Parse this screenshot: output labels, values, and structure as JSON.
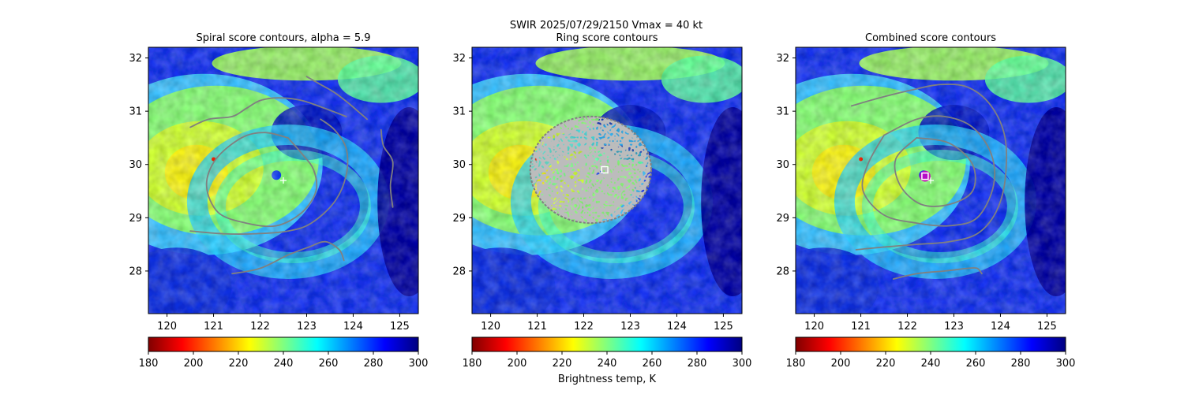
{
  "figure": {
    "suptitle_line1": "SWIR  2025/07/29/2150    Vmax = 40 kt",
    "colorbar_label": "Brightness temp, K"
  },
  "colormap": {
    "name": "jet",
    "reversed": true,
    "range": [
      180,
      300
    ],
    "ticks": [
      "180",
      "200",
      "220",
      "240",
      "260",
      "280",
      "300"
    ]
  },
  "axes_common": {
    "xlim": [
      119.6,
      125.4
    ],
    "ylim": [
      27.2,
      32.2
    ],
    "x_ticks": [
      "120",
      "121",
      "122",
      "123",
      "124",
      "125"
    ],
    "y_ticks": [
      "28",
      "29",
      "30",
      "31",
      "32"
    ]
  },
  "chart_data": [
    {
      "type": "heatmap",
      "title": "Spiral score contours, alpha =  5.9",
      "field": "brightness temperature (K)",
      "value_range": [
        180,
        300
      ],
      "contour_color": "#808080",
      "contours": [
        [
          [
            120.5,
            30.7
          ],
          [
            120.9,
            30.85
          ],
          [
            121.4,
            30.9
          ],
          [
            121.7,
            31.05
          ],
          [
            122.0,
            31.2
          ],
          [
            122.4,
            31.25
          ],
          [
            122.9,
            31.2
          ],
          [
            123.4,
            31.05
          ],
          [
            123.85,
            30.9
          ]
        ],
        [
          [
            123.0,
            31.65
          ],
          [
            123.3,
            31.5
          ],
          [
            123.6,
            31.35
          ],
          [
            123.9,
            31.15
          ],
          [
            124.1,
            31.0
          ],
          [
            124.3,
            30.85
          ]
        ],
        [
          [
            122.6,
            30.5
          ],
          [
            122.1,
            30.6
          ],
          [
            121.6,
            30.5
          ],
          [
            121.05,
            30.1
          ],
          [
            120.85,
            29.6
          ],
          [
            121.1,
            29.1
          ],
          [
            121.7,
            28.9
          ],
          [
            122.35,
            28.85
          ],
          [
            122.9,
            29.1
          ],
          [
            123.2,
            29.5
          ],
          [
            123.15,
            29.9
          ],
          [
            122.9,
            30.2
          ],
          [
            122.6,
            30.5
          ]
        ],
        [
          [
            120.5,
            28.75
          ],
          [
            121.2,
            28.7
          ],
          [
            121.9,
            28.7
          ],
          [
            122.6,
            28.75
          ],
          [
            123.1,
            28.9
          ],
          [
            123.6,
            29.3
          ],
          [
            123.85,
            29.8
          ],
          [
            123.85,
            30.3
          ],
          [
            123.6,
            30.65
          ],
          [
            123.3,
            30.85
          ]
        ],
        [
          [
            121.4,
            27.95
          ],
          [
            122.0,
            28.05
          ],
          [
            122.6,
            28.3
          ],
          [
            123.05,
            28.45
          ],
          [
            123.4,
            28.55
          ],
          [
            123.7,
            28.4
          ],
          [
            123.8,
            28.2
          ]
        ],
        [
          [
            124.6,
            30.65
          ],
          [
            124.65,
            30.35
          ],
          [
            124.85,
            30.05
          ],
          [
            124.8,
            29.6
          ],
          [
            124.85,
            29.2
          ]
        ]
      ],
      "markers": [
        {
          "type": "plus",
          "label": "center",
          "lon": 122.5,
          "lat": 29.7,
          "color": "#ffffff"
        }
      ]
    },
    {
      "type": "heatmap",
      "title": "Ring score contours",
      "field": "brightness temperature (K)",
      "value_range": [
        180,
        300
      ],
      "contour_color": "#808080",
      "ring_region": {
        "lon_center": 122.15,
        "lat_center": 29.9,
        "lon_radius": 1.3,
        "lat_radius": 1.0
      },
      "markers": [
        {
          "type": "square",
          "label": "ring center",
          "lon": 122.45,
          "lat": 29.9,
          "color": "#ffffff"
        }
      ]
    },
    {
      "type": "heatmap",
      "title": "Combined score contours",
      "field": "brightness temperature (K)",
      "value_range": [
        180,
        300
      ],
      "contour_color": "#808080",
      "contours": [
        [
          [
            122.2,
            30.5
          ],
          [
            122.9,
            30.4
          ],
          [
            123.4,
            30.0
          ],
          [
            123.4,
            29.5
          ],
          [
            122.9,
            29.25
          ],
          [
            122.3,
            29.25
          ],
          [
            121.85,
            29.6
          ],
          [
            121.75,
            30.1
          ],
          [
            122.2,
            30.5
          ]
        ],
        [
          [
            121.5,
            30.55
          ],
          [
            122.2,
            30.85
          ],
          [
            122.8,
            30.9
          ],
          [
            123.4,
            30.7
          ],
          [
            123.8,
            30.2
          ],
          [
            123.85,
            29.6
          ],
          [
            123.5,
            29.0
          ],
          [
            122.9,
            28.85
          ],
          [
            122.2,
            28.9
          ],
          [
            121.5,
            29.05
          ],
          [
            121.05,
            29.5
          ],
          [
            121.15,
            30.0
          ],
          [
            121.5,
            30.55
          ]
        ],
        [
          [
            120.8,
            31.1
          ],
          [
            121.4,
            31.25
          ],
          [
            122.1,
            31.4
          ],
          [
            122.7,
            31.5
          ],
          [
            123.3,
            31.45
          ],
          [
            123.8,
            31.1
          ],
          [
            124.1,
            30.5
          ],
          [
            124.1,
            29.7
          ],
          [
            123.9,
            29.1
          ],
          [
            123.5,
            28.7
          ],
          [
            122.9,
            28.55
          ],
          [
            122.2,
            28.5
          ],
          [
            121.5,
            28.45
          ],
          [
            120.9,
            28.4
          ]
        ],
        [
          [
            121.7,
            27.85
          ],
          [
            122.2,
            27.95
          ],
          [
            122.8,
            28.0
          ],
          [
            123.3,
            28.05
          ],
          [
            123.5,
            28.05
          ],
          [
            123.6,
            27.95
          ]
        ]
      ],
      "markers": [
        {
          "type": "plus",
          "label": "center",
          "lon": 122.5,
          "lat": 29.7,
          "color": "#ffffff"
        },
        {
          "type": "square",
          "label": "combined center",
          "lon": 122.38,
          "lat": 29.78,
          "color": "#ffffff"
        }
      ]
    }
  ]
}
